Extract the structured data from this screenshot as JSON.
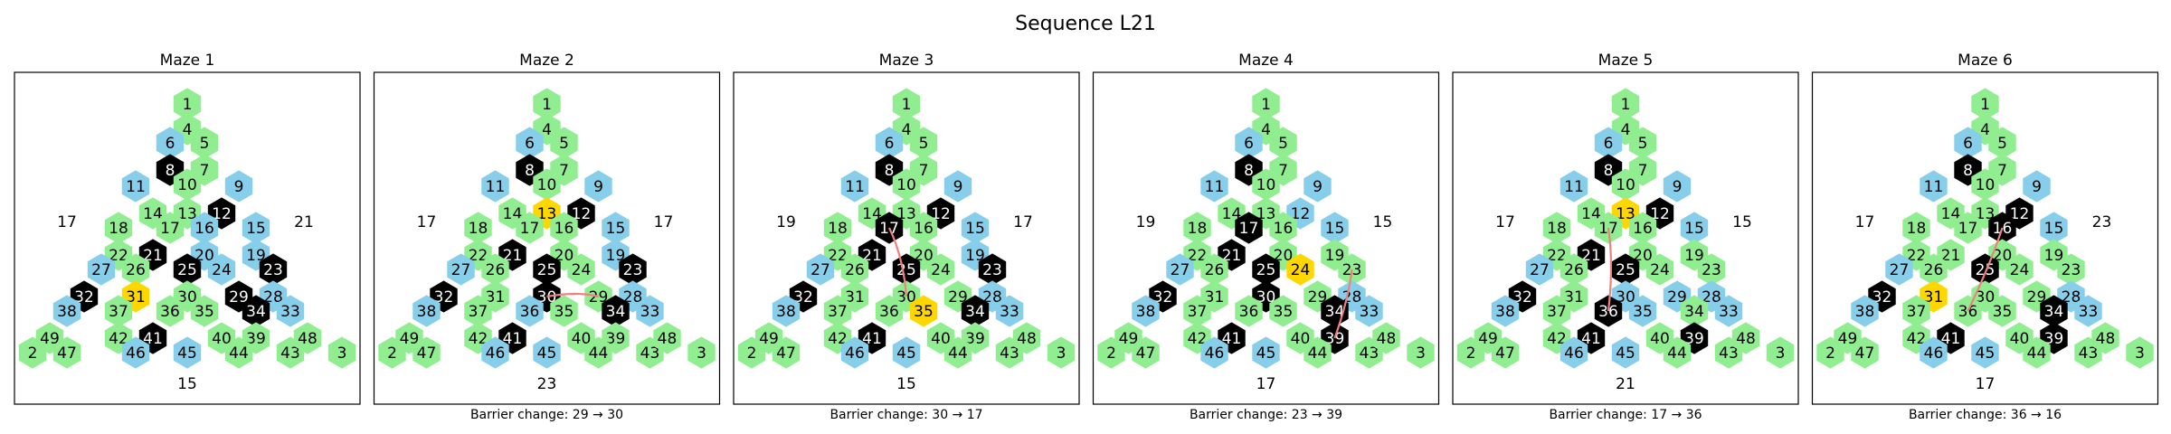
{
  "title": "Sequence L21",
  "colors": {
    "open": "#90ee90",
    "blue": "#87ceeb",
    "wall": "#000000",
    "goal": "#ffd700",
    "barrier": "#f08080",
    "frame": "#000000"
  },
  "legend_map": {
    "1": "open",
    "2": "open",
    "3": "open",
    "4": "open",
    "5": "open",
    "6": "blue",
    "7": "open",
    "8": "wall",
    "9": "blue",
    "10": "open",
    "11": "blue",
    "12": "wall",
    "13": "open",
    "14": "open",
    "15": "blue",
    "16": "blue",
    "17": "open",
    "18": "open",
    "19": "blue",
    "20": "blue",
    "21": "wall",
    "22": "open",
    "23": "wall",
    "24": "blue",
    "25": "wall",
    "26": "open",
    "27": "blue",
    "28": "blue",
    "29": "wall",
    "30": "open",
    "31": "goal",
    "32": "wall",
    "33": "blue",
    "34": "wall",
    "35": "open",
    "36": "open",
    "37": "open",
    "38": "blue",
    "39": "open",
    "40": "open",
    "41": "wall",
    "42": "open",
    "43": "open",
    "44": "open",
    "45": "blue",
    "46": "blue",
    "47": "open",
    "48": "open",
    "49": "open"
  },
  "mazes": [
    {
      "title": "Maze 1",
      "caption": "",
      "side_left": "17",
      "side_right": "21",
      "side_bottom": "15",
      "rows": [
        [
          "1"
        ],
        [
          "4"
        ],
        [
          "6",
          "5"
        ],
        [
          "8"
        ],
        [
          "11",
          "7",
          "9"
        ],
        [
          "10"
        ],
        [
          "14",
          "12"
        ],
        [
          "18",
          "17",
          "16",
          "15"
        ],
        [
          "13",
          "19"
        ],
        [
          "22",
          "21",
          "20"
        ],
        [
          "27",
          "25",
          "24",
          "23"
        ],
        [
          "26",
          "30"
        ],
        [
          "38",
          "32",
          "37",
          "36",
          "35",
          "29",
          "34",
          "28",
          "33"
        ],
        [
          "31"
        ],
        [
          "49",
          "42",
          "41",
          "40",
          "39",
          "48"
        ],
        [
          "2",
          "47",
          "46",
          "45",
          "44",
          "43",
          "3"
        ]
      ],
      "overrides": {
        "12": "wall",
        "13": "open",
        "16": "blue",
        "19": "blue",
        "20": "blue",
        "24": "blue",
        "21": "wall",
        "25": "wall",
        "23": "wall",
        "29": "wall",
        "34": "wall",
        "30": "open",
        "31": "goal",
        "35": "open",
        "36": "open"
      },
      "barrier": null
    },
    {
      "title": "Maze 2",
      "caption": "Barrier change: 29 → 30",
      "side_left": "17",
      "side_right": "17",
      "side_bottom": "23",
      "overrides": {
        "13": "goal",
        "12": "wall",
        "16": "open",
        "19": "blue",
        "20": "open",
        "24": "open",
        "21": "wall",
        "25": "wall",
        "23": "wall",
        "29": "open",
        "34": "wall",
        "30": "wall",
        "31": "open",
        "35": "open",
        "36": "blue"
      },
      "barrier": [
        "29",
        "30"
      ]
    },
    {
      "title": "Maze 3",
      "caption": "Barrier change: 30 → 17",
      "side_left": "19",
      "side_right": "17",
      "side_bottom": "15",
      "overrides": {
        "13": "open",
        "12": "wall",
        "16": "open",
        "19": "blue",
        "20": "open",
        "24": "open",
        "21": "wall",
        "25": "wall",
        "23": "wall",
        "29": "open",
        "34": "wall",
        "30": "open",
        "17": "wall",
        "31": "open",
        "35": "goal",
        "36": "open"
      },
      "barrier": [
        "30",
        "17"
      ]
    },
    {
      "title": "Maze 4",
      "caption": "Barrier change: 23 → 39",
      "side_left": "19",
      "side_right": "15",
      "side_bottom": "17",
      "overrides": {
        "13": "open",
        "12": "blue",
        "16": "open",
        "19": "open",
        "20": "open",
        "24": "goal",
        "21": "wall",
        "25": "wall",
        "23": "open",
        "29": "open",
        "34": "wall",
        "30": "wall",
        "17": "wall",
        "31": "open",
        "35": "open",
        "36": "open",
        "39": "wall"
      },
      "barrier": [
        "23",
        "39"
      ]
    },
    {
      "title": "Maze 5",
      "caption": "Barrier change: 17 → 36",
      "side_left": "17",
      "side_right": "15",
      "side_bottom": "21",
      "overrides": {
        "13": "goal",
        "12": "wall",
        "16": "open",
        "19": "open",
        "20": "open",
        "24": "open",
        "21": "wall",
        "25": "wall",
        "23": "open",
        "29": "blue",
        "34": "open",
        "30": "blue",
        "17": "open",
        "31": "open",
        "35": "blue",
        "36": "wall",
        "39": "wall"
      },
      "barrier": [
        "17",
        "36"
      ]
    },
    {
      "title": "Maze 6",
      "caption": "Barrier change: 36 → 16",
      "side_left": "17",
      "side_right": "23",
      "side_bottom": "17",
      "overrides": {
        "13": "open",
        "12": "wall",
        "16": "wall",
        "19": "open",
        "20": "open",
        "24": "open",
        "21": "open",
        "25": "wall",
        "23": "open",
        "29": "open",
        "34": "wall",
        "30": "open",
        "17": "open",
        "31": "goal",
        "35": "open",
        "36": "open",
        "39": "wall"
      },
      "barrier": [
        "36",
        "16"
      ]
    }
  ]
}
